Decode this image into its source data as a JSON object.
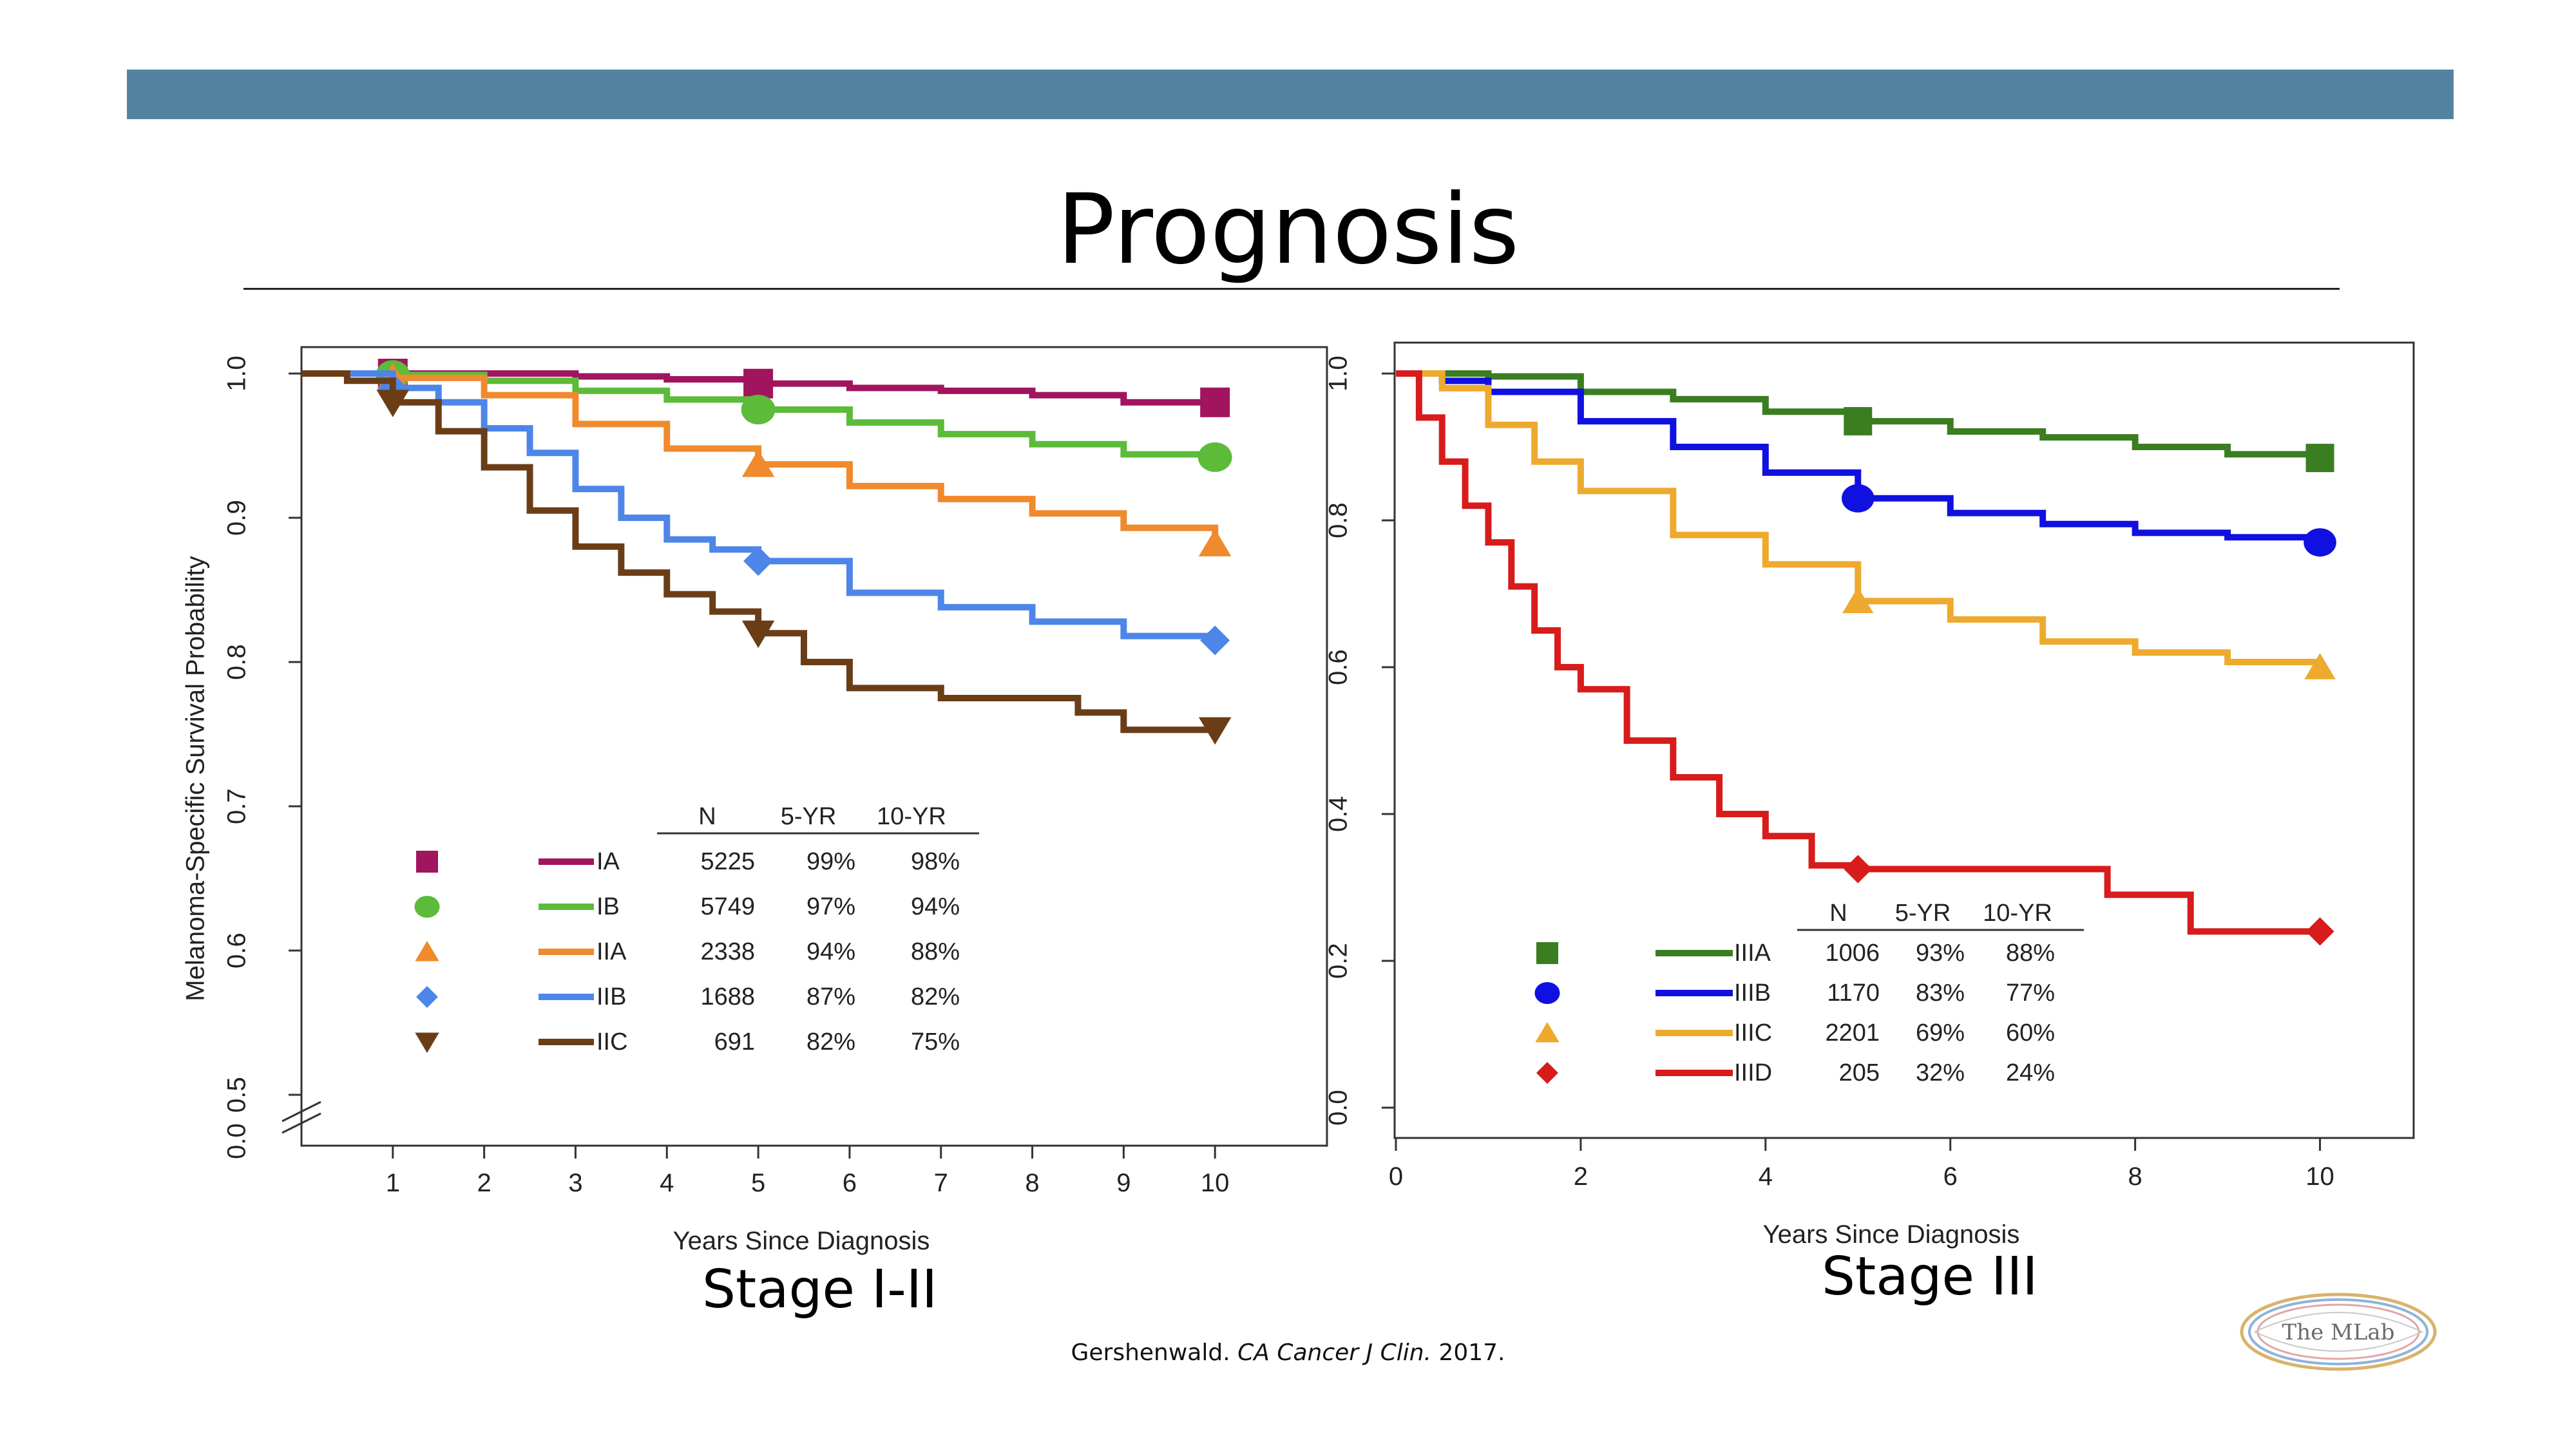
{
  "slide": {
    "title": "Prognosis",
    "captions": {
      "left": "Stage I-II",
      "right": "Stage III"
    },
    "citation": {
      "author": "Gershenwald. ",
      "journal": "CA Cancer J Clin.",
      "year": " 2017."
    },
    "logo_text": "The MLab",
    "accent_color": "#5383a0"
  },
  "chart_data": [
    {
      "type": "line",
      "step": true,
      "xlabel": "Years Since Diagnosis",
      "ylabel": "Melanoma-Specific Survival Probability",
      "xlim": [
        0,
        11
      ],
      "ylim": [
        0.5,
        1.0
      ],
      "x_ticks": [
        1,
        2,
        3,
        4,
        5,
        6,
        7,
        8,
        9,
        10
      ],
      "y_ticks": [
        0.5,
        0.6,
        0.7,
        0.8,
        0.9,
        1.0
      ],
      "y_axis_break": true,
      "y_bottom_label": "0.0",
      "table_headers": [
        "N",
        "5-YR",
        "10-YR"
      ],
      "series": [
        {
          "name": "IA",
          "color": "#a0155e",
          "marker": "square",
          "N": "5225",
          "yr5": "99%",
          "yr10": "98%",
          "x": [
            0,
            1,
            2,
            3,
            4,
            5,
            6,
            7,
            8,
            9,
            10
          ],
          "y": [
            1.0,
            1.0,
            1.0,
            0.998,
            0.996,
            0.993,
            0.99,
            0.988,
            0.985,
            0.98,
            0.98
          ]
        },
        {
          "name": "IB",
          "color": "#5dbb3a",
          "marker": "circle",
          "N": "5749",
          "yr5": "97%",
          "yr10": "94%",
          "x": [
            0,
            1,
            2,
            3,
            4,
            5,
            6,
            7,
            8,
            9,
            10
          ],
          "y": [
            1.0,
            0.999,
            0.995,
            0.988,
            0.982,
            0.975,
            0.966,
            0.958,
            0.951,
            0.944,
            0.942
          ]
        },
        {
          "name": "IIA",
          "color": "#ef8a2d",
          "marker": "triangle-up",
          "N": "2338",
          "yr5": "94%",
          "yr10": "88%",
          "x": [
            0,
            1,
            2,
            3,
            4,
            5,
            6,
            7,
            8,
            9,
            10
          ],
          "y": [
            1.0,
            0.997,
            0.985,
            0.965,
            0.948,
            0.937,
            0.922,
            0.913,
            0.903,
            0.893,
            0.882
          ]
        },
        {
          "name": "IIB",
          "color": "#4d86e8",
          "marker": "diamond",
          "N": "1688",
          "yr5": "87%",
          "yr10": "82%",
          "x": [
            0,
            1,
            1.5,
            2,
            2.5,
            3,
            3.5,
            4,
            4.5,
            5,
            6,
            7,
            8,
            9,
            10
          ],
          "y": [
            1.0,
            0.99,
            0.98,
            0.962,
            0.945,
            0.92,
            0.9,
            0.885,
            0.878,
            0.87,
            0.848,
            0.838,
            0.828,
            0.818,
            0.815
          ]
        },
        {
          "name": "IIC",
          "color": "#6b3d17",
          "marker": "triangle-down",
          "N": "691",
          "yr5": "82%",
          "yr10": "75%",
          "x": [
            0,
            0.5,
            1,
            1.5,
            2,
            2.5,
            3,
            3.5,
            4,
            4.5,
            5,
            5.5,
            6,
            7,
            8,
            8.5,
            9,
            10
          ],
          "y": [
            1.0,
            0.995,
            0.98,
            0.96,
            0.935,
            0.905,
            0.88,
            0.862,
            0.847,
            0.835,
            0.82,
            0.8,
            0.782,
            0.775,
            0.775,
            0.765,
            0.753,
            0.753
          ]
        }
      ]
    },
    {
      "type": "line",
      "step": true,
      "xlabel": "Years Since Diagnosis",
      "ylabel": "",
      "xlim": [
        0,
        11
      ],
      "ylim": [
        0,
        1.0
      ],
      "x_ticks": [
        0,
        2,
        4,
        6,
        8,
        10
      ],
      "y_ticks": [
        0.0,
        0.2,
        0.4,
        0.6,
        0.8,
        1.0
      ],
      "table_headers": [
        "N",
        "5-YR",
        "10-YR"
      ],
      "series": [
        {
          "name": "IIIA",
          "color": "#3b7d21",
          "marker": "square",
          "N": "1006",
          "yr5": "93%",
          "yr10": "88%",
          "x": [
            0,
            1,
            2,
            3,
            4,
            5,
            6,
            7,
            8,
            9,
            10
          ],
          "y": [
            1.0,
            0.996,
            0.975,
            0.965,
            0.948,
            0.935,
            0.921,
            0.913,
            0.9,
            0.89,
            0.885
          ]
        },
        {
          "name": "IIIB",
          "color": "#1010e0",
          "marker": "circle",
          "N": "1170",
          "yr5": "83%",
          "yr10": "77%",
          "x": [
            0,
            0.5,
            1,
            2,
            3,
            4,
            5,
            6,
            7,
            8,
            9,
            10
          ],
          "y": [
            1.0,
            0.99,
            0.975,
            0.935,
            0.9,
            0.865,
            0.83,
            0.81,
            0.795,
            0.783,
            0.777,
            0.77
          ]
        },
        {
          "name": "IIIC",
          "color": "#eeaa2e",
          "marker": "triangle-up",
          "N": "2201",
          "yr5": "69%",
          "yr10": "60%",
          "x": [
            0,
            0.5,
            1,
            1.5,
            2,
            3,
            4,
            5,
            6,
            7,
            8,
            9,
            10
          ],
          "y": [
            1.0,
            0.98,
            0.93,
            0.88,
            0.84,
            0.78,
            0.74,
            0.69,
            0.665,
            0.635,
            0.62,
            0.607,
            0.6
          ]
        },
        {
          "name": "IIID",
          "color": "#d81b1b",
          "marker": "diamond",
          "N": "205",
          "yr5": "32%",
          "yr10": "24%",
          "x": [
            0,
            0.25,
            0.5,
            0.75,
            1,
            1.25,
            1.5,
            1.75,
            2,
            2.5,
            3,
            3.5,
            4,
            4.5,
            5,
            6,
            7,
            7.7,
            8.6,
            10
          ],
          "y": [
            1.0,
            0.94,
            0.88,
            0.82,
            0.77,
            0.71,
            0.65,
            0.6,
            0.57,
            0.5,
            0.45,
            0.4,
            0.37,
            0.33,
            0.325,
            0.325,
            0.325,
            0.29,
            0.24,
            0.24
          ]
        }
      ]
    }
  ]
}
